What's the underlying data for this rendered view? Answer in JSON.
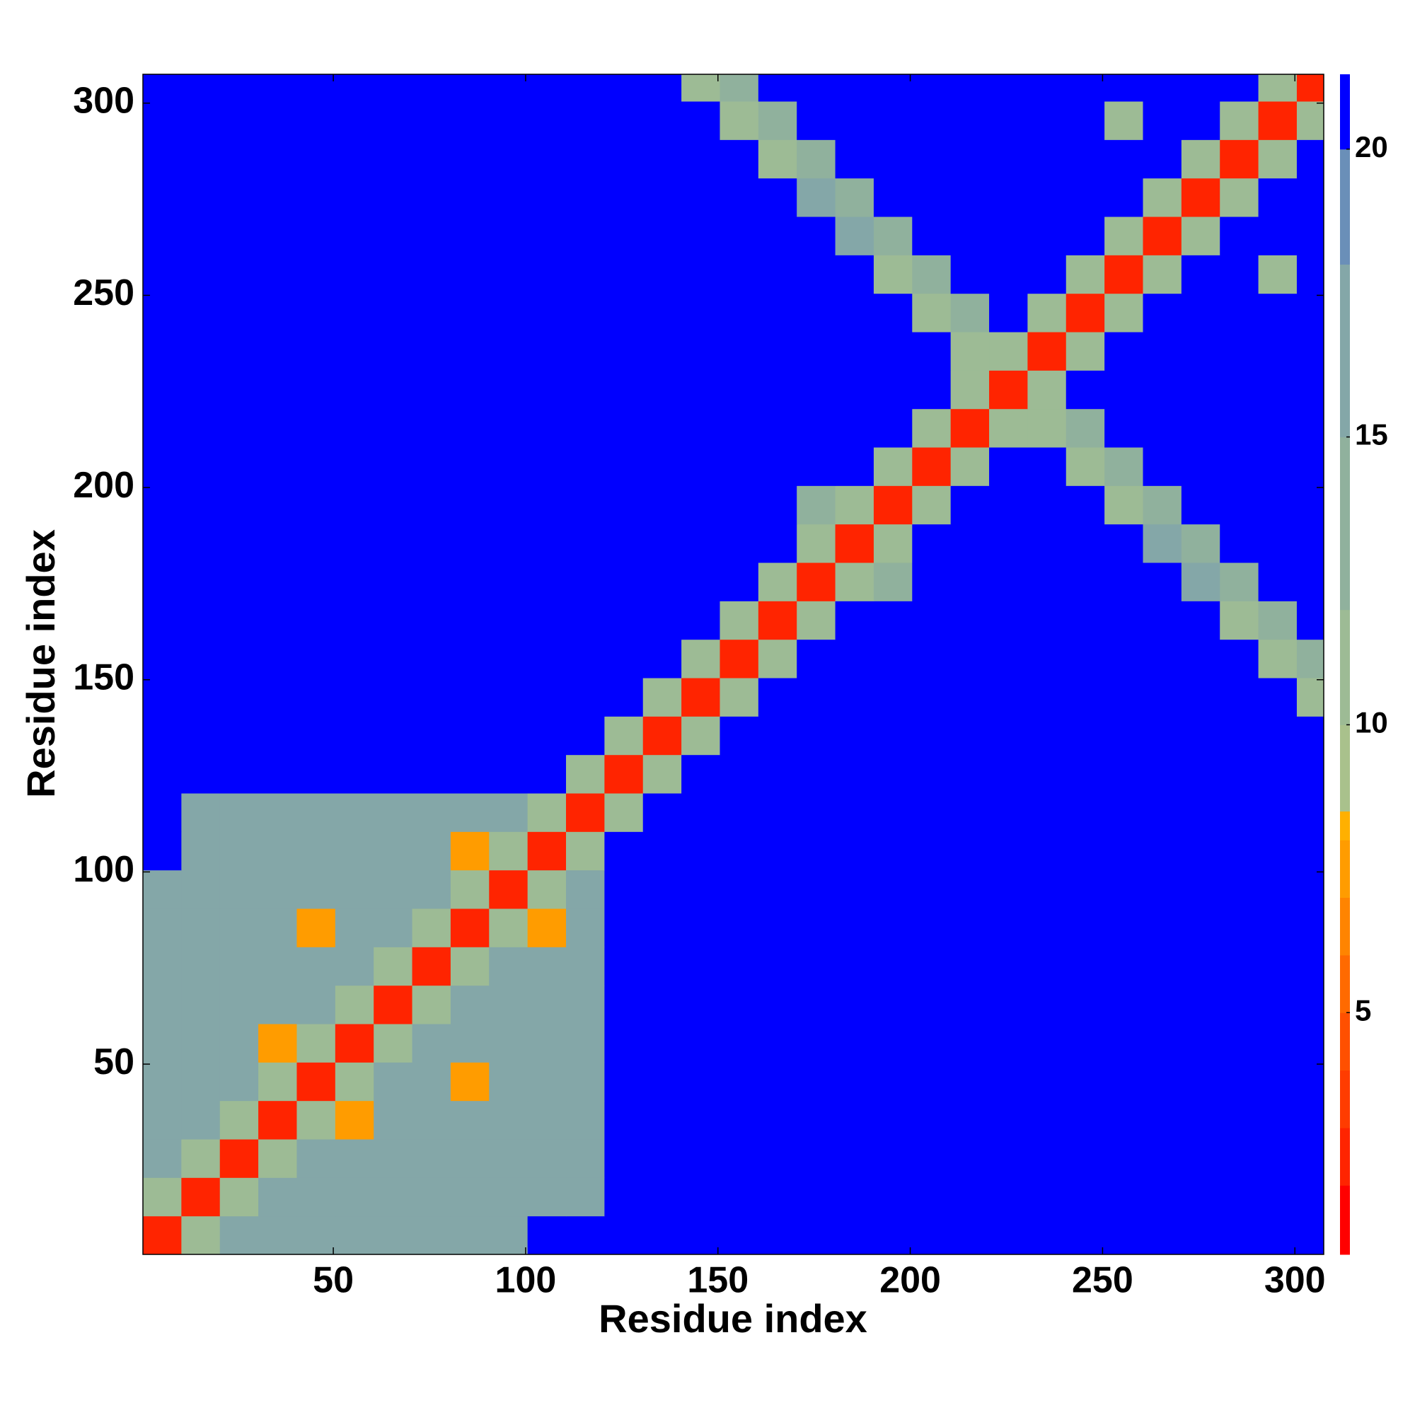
{
  "chart_data": {
    "type": "heatmap",
    "x_label": "Residue index",
    "y_label": "Residue index",
    "xlim": [
      0.5,
      307.5
    ],
    "ylim": [
      0.5,
      307.5
    ],
    "xticks": [
      50,
      100,
      150,
      200,
      250,
      300
    ],
    "yticks": [
      50,
      100,
      150,
      200,
      250,
      300
    ],
    "edges": [
      0.5,
      10.5,
      20.5,
      30.5,
      40.5,
      50.5,
      60.5,
      70.5,
      80.5,
      90.5,
      100.5,
      110.5,
      120.5,
      130.5,
      140.5,
      150.5,
      160.5,
      170.5,
      180.5,
      190.5,
      200.5,
      210.5,
      220.5,
      230.5,
      240.5,
      250.5,
      260.5,
      270.5,
      280.5,
      290.5,
      300.5,
      307.5
    ],
    "clim": [
      0.8,
      21.3
    ],
    "cticks": [
      5,
      10,
      15,
      20
    ],
    "colorscale": {
      "bounds": [
        0.8,
        2,
        3,
        4,
        5,
        6,
        7,
        8,
        8.5,
        10,
        12,
        15,
        18,
        20,
        21.3
      ],
      "colors": [
        "#ff0000",
        "#ff2400",
        "#ff3c00",
        "#ff5000",
        "#ff6a00",
        "#ff8400",
        "#ff9c00",
        "#ffb000",
        "#a9c18c",
        "#9dbb95",
        "#90b19d",
        "#84a7a8",
        "#6a8fb8",
        "#0000ff"
      ]
    },
    "values": [
      [
        3,
        12,
        17,
        17,
        17,
        17,
        17,
        17,
        17,
        17,
        21,
        21,
        21,
        21,
        21,
        21,
        21,
        21,
        21,
        21,
        21,
        21,
        21,
        21,
        21,
        21,
        21,
        21,
        21,
        21,
        21
      ],
      [
        12,
        3,
        12,
        17,
        17,
        17,
        17,
        17,
        17,
        17,
        17,
        17,
        21,
        21,
        21,
        21,
        21,
        21,
        21,
        21,
        21,
        21,
        21,
        21,
        21,
        21,
        21,
        21,
        21,
        21,
        21
      ],
      [
        17,
        12,
        3,
        12,
        17,
        17,
        17,
        17,
        17,
        17,
        17,
        17,
        21,
        21,
        21,
        21,
        21,
        21,
        21,
        21,
        21,
        21,
        21,
        21,
        21,
        21,
        21,
        21,
        21,
        21,
        21
      ],
      [
        17,
        17,
        12,
        3,
        12,
        8,
        17,
        17,
        17,
        17,
        17,
        17,
        21,
        21,
        21,
        21,
        21,
        21,
        21,
        21,
        21,
        21,
        21,
        21,
        21,
        21,
        21,
        21,
        21,
        21,
        21
      ],
      [
        17,
        17,
        17,
        12,
        3,
        12,
        17,
        17,
        8,
        17,
        17,
        17,
        21,
        21,
        21,
        21,
        21,
        21,
        21,
        21,
        21,
        21,
        21,
        21,
        21,
        21,
        21,
        21,
        21,
        21,
        21
      ],
      [
        17,
        17,
        17,
        8,
        12,
        3,
        12,
        17,
        17,
        17,
        17,
        17,
        21,
        21,
        21,
        21,
        21,
        21,
        21,
        21,
        21,
        21,
        21,
        21,
        21,
        21,
        21,
        21,
        21,
        21,
        21
      ],
      [
        17,
        17,
        17,
        17,
        17,
        12,
        3,
        12,
        17,
        17,
        17,
        17,
        21,
        21,
        21,
        21,
        21,
        21,
        21,
        21,
        21,
        21,
        21,
        21,
        21,
        21,
        21,
        21,
        21,
        21,
        21
      ],
      [
        17,
        17,
        17,
        17,
        17,
        17,
        12,
        3,
        12,
        17,
        17,
        17,
        21,
        21,
        21,
        21,
        21,
        21,
        21,
        21,
        21,
        21,
        21,
        21,
        21,
        21,
        21,
        21,
        21,
        21,
        21
      ],
      [
        17,
        17,
        17,
        17,
        8,
        17,
        17,
        12,
        3,
        12,
        8,
        17,
        21,
        21,
        21,
        21,
        21,
        21,
        21,
        21,
        21,
        21,
        21,
        21,
        21,
        21,
        21,
        21,
        21,
        21,
        21
      ],
      [
        17,
        17,
        17,
        17,
        17,
        17,
        17,
        17,
        12,
        3,
        12,
        17,
        21,
        21,
        21,
        21,
        21,
        21,
        21,
        21,
        21,
        21,
        21,
        21,
        21,
        21,
        21,
        21,
        21,
        21,
        21
      ],
      [
        21,
        17,
        17,
        17,
        17,
        17,
        17,
        17,
        8,
        12,
        3,
        12,
        21,
        21,
        21,
        21,
        21,
        21,
        21,
        21,
        21,
        21,
        21,
        21,
        21,
        21,
        21,
        21,
        21,
        21,
        21
      ],
      [
        21,
        17,
        17,
        17,
        17,
        17,
        17,
        17,
        17,
        17,
        12,
        3,
        12,
        21,
        21,
        21,
        21,
        21,
        21,
        21,
        21,
        21,
        21,
        21,
        21,
        21,
        21,
        21,
        21,
        21,
        21
      ],
      [
        21,
        21,
        21,
        21,
        21,
        21,
        21,
        21,
        21,
        21,
        21,
        12,
        3,
        12,
        21,
        21,
        21,
        21,
        21,
        21,
        21,
        21,
        21,
        21,
        21,
        21,
        21,
        21,
        21,
        21,
        21
      ],
      [
        21,
        21,
        21,
        21,
        21,
        21,
        21,
        21,
        21,
        21,
        21,
        21,
        12,
        3,
        12,
        21,
        21,
        21,
        21,
        21,
        21,
        21,
        21,
        21,
        21,
        21,
        21,
        21,
        21,
        21,
        21
      ],
      [
        21,
        21,
        21,
        21,
        21,
        21,
        21,
        21,
        21,
        21,
        21,
        21,
        21,
        12,
        3,
        12,
        21,
        21,
        21,
        21,
        21,
        21,
        21,
        21,
        21,
        21,
        21,
        21,
        21,
        21,
        12
      ],
      [
        21,
        21,
        21,
        21,
        21,
        21,
        21,
        21,
        21,
        21,
        21,
        21,
        21,
        21,
        12,
        3,
        12,
        21,
        21,
        21,
        21,
        21,
        21,
        21,
        21,
        21,
        21,
        21,
        21,
        12,
        14
      ],
      [
        21,
        21,
        21,
        21,
        21,
        21,
        21,
        21,
        21,
        21,
        21,
        21,
        21,
        21,
        21,
        12,
        3,
        12,
        21,
        21,
        21,
        21,
        21,
        21,
        21,
        21,
        21,
        21,
        12,
        14,
        21
      ],
      [
        21,
        21,
        21,
        21,
        21,
        21,
        21,
        21,
        21,
        21,
        21,
        21,
        21,
        21,
        21,
        21,
        12,
        3,
        12,
        14,
        21,
        21,
        21,
        21,
        21,
        21,
        21,
        17,
        14,
        21,
        21
      ],
      [
        21,
        21,
        21,
        21,
        21,
        21,
        21,
        21,
        21,
        21,
        21,
        21,
        21,
        21,
        21,
        21,
        21,
        12,
        3,
        12,
        21,
        21,
        21,
        21,
        21,
        21,
        17,
        14,
        21,
        21,
        21
      ],
      [
        21,
        21,
        21,
        21,
        21,
        21,
        21,
        21,
        21,
        21,
        21,
        21,
        21,
        21,
        21,
        21,
        21,
        14,
        12,
        3,
        12,
        21,
        21,
        21,
        21,
        12,
        14,
        21,
        21,
        21,
        21
      ],
      [
        21,
        21,
        21,
        21,
        21,
        21,
        21,
        21,
        21,
        21,
        21,
        21,
        21,
        21,
        21,
        21,
        21,
        21,
        21,
        12,
        3,
        12,
        21,
        21,
        12,
        14,
        21,
        21,
        21,
        21,
        21
      ],
      [
        21,
        21,
        21,
        21,
        21,
        21,
        21,
        21,
        21,
        21,
        21,
        21,
        21,
        21,
        21,
        21,
        21,
        21,
        21,
        21,
        12,
        3,
        12,
        12,
        14,
        21,
        21,
        21,
        21,
        21,
        21
      ],
      [
        21,
        21,
        21,
        21,
        21,
        21,
        21,
        21,
        21,
        21,
        21,
        21,
        21,
        21,
        21,
        21,
        21,
        21,
        21,
        21,
        21,
        12,
        3,
        12,
        21,
        21,
        21,
        21,
        21,
        21,
        21
      ],
      [
        21,
        21,
        21,
        21,
        21,
        21,
        21,
        21,
        21,
        21,
        21,
        21,
        21,
        21,
        21,
        21,
        21,
        21,
        21,
        21,
        21,
        12,
        12,
        3,
        12,
        21,
        21,
        21,
        21,
        21,
        21
      ],
      [
        21,
        21,
        21,
        21,
        21,
        21,
        21,
        21,
        21,
        21,
        21,
        21,
        21,
        21,
        21,
        21,
        21,
        21,
        21,
        21,
        12,
        14,
        21,
        12,
        3,
        12,
        21,
        21,
        21,
        21,
        21
      ],
      [
        21,
        21,
        21,
        21,
        21,
        21,
        21,
        21,
        21,
        21,
        21,
        21,
        21,
        21,
        21,
        21,
        21,
        21,
        21,
        12,
        14,
        21,
        21,
        21,
        12,
        3,
        12,
        21,
        21,
        12,
        21
      ],
      [
        21,
        21,
        21,
        21,
        21,
        21,
        21,
        21,
        21,
        21,
        21,
        21,
        21,
        21,
        21,
        21,
        21,
        21,
        17,
        14,
        21,
        21,
        21,
        21,
        21,
        12,
        3,
        12,
        21,
        21,
        21
      ],
      [
        21,
        21,
        21,
        21,
        21,
        21,
        21,
        21,
        21,
        21,
        21,
        21,
        21,
        21,
        21,
        21,
        21,
        17,
        14,
        21,
        21,
        21,
        21,
        21,
        21,
        21,
        12,
        3,
        12,
        21,
        21
      ],
      [
        21,
        21,
        21,
        21,
        21,
        21,
        21,
        21,
        21,
        21,
        21,
        21,
        21,
        21,
        21,
        21,
        12,
        14,
        21,
        21,
        21,
        21,
        21,
        21,
        21,
        21,
        21,
        12,
        3,
        12,
        21
      ],
      [
        21,
        21,
        21,
        21,
        21,
        21,
        21,
        21,
        21,
        21,
        21,
        21,
        21,
        21,
        21,
        12,
        14,
        21,
        21,
        21,
        21,
        21,
        21,
        21,
        21,
        12,
        21,
        21,
        12,
        3,
        12
      ],
      [
        21,
        21,
        21,
        21,
        21,
        21,
        21,
        21,
        21,
        21,
        21,
        21,
        21,
        21,
        12,
        14,
        21,
        21,
        21,
        21,
        21,
        21,
        21,
        21,
        21,
        21,
        21,
        21,
        21,
        12,
        3
      ]
    ]
  }
}
